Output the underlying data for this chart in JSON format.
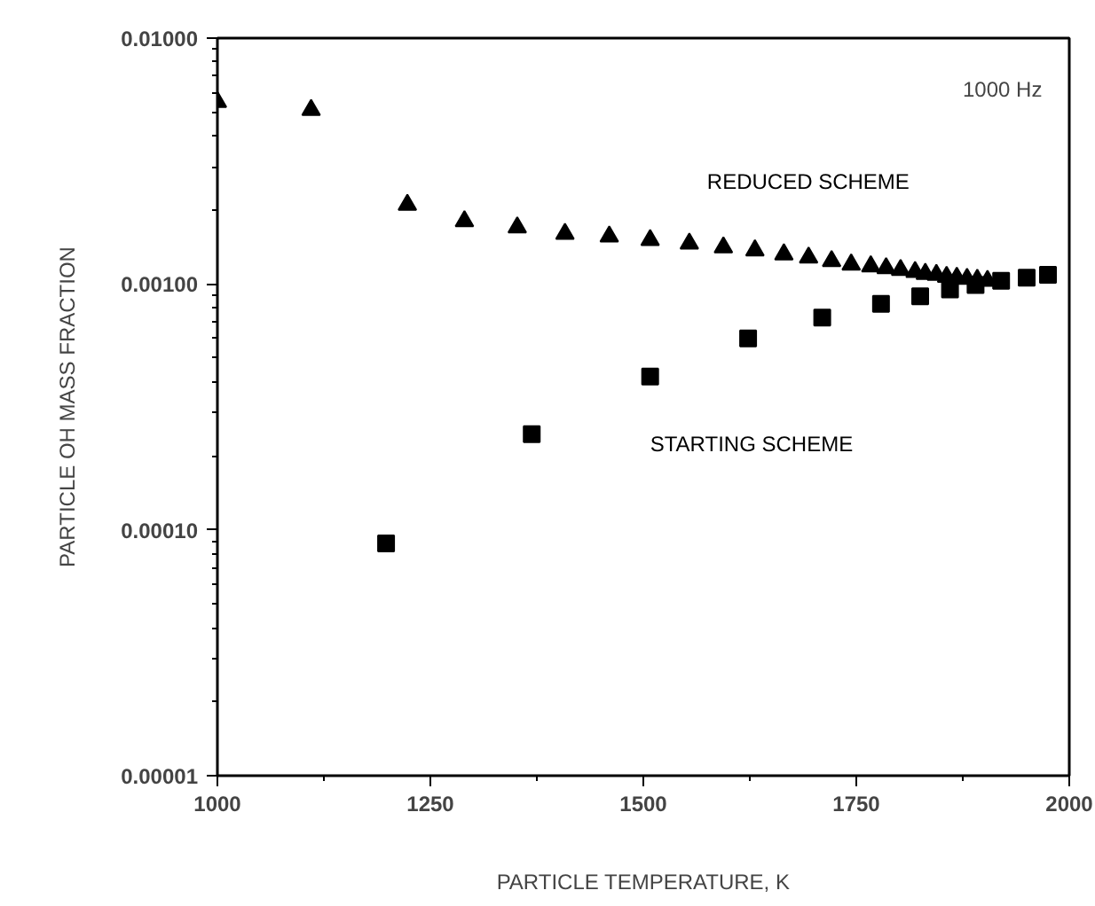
{
  "chart_data": {
    "type": "scatter",
    "xlabel": "PARTICLE TEMPERATURE, K",
    "ylabel": "PARTICLE OH MASS FRACTION",
    "log": "y",
    "xlim": [
      1000,
      2000
    ],
    "ylim": [
      1e-05,
      0.01
    ],
    "xticks": [
      1000,
      1250,
      1500,
      1750,
      2000
    ],
    "yticks": [
      {
        "value": 1e-05,
        "label": "0.00001"
      },
      {
        "value": 0.0001,
        "label": "0.00010"
      },
      {
        "value": 0.001,
        "label": "0.00100"
      },
      {
        "value": 0.01,
        "label": "0.01000"
      }
    ],
    "grid": false,
    "annotations": [
      "1000 Hz"
    ],
    "series": [
      {
        "name": "REDUCED SCHEME",
        "color": "#000000",
        "marker": "triangle",
        "x": [
          1000,
          1110,
          1223,
          1290,
          1352,
          1408,
          1460,
          1508,
          1554,
          1594,
          1631,
          1665,
          1694,
          1721,
          1744,
          1767,
          1785,
          1802,
          1819,
          1831,
          1844,
          1856,
          1868,
          1880,
          1892,
          1904
        ],
        "values": [
          0.0055,
          0.0051,
          0.0021,
          0.0018,
          0.0017,
          0.0016,
          0.00156,
          0.00151,
          0.00146,
          0.00141,
          0.00137,
          0.00132,
          0.00128,
          0.00124,
          0.0012,
          0.00118,
          0.00116,
          0.00114,
          0.00112,
          0.0011,
          0.00109,
          0.00107,
          0.00106,
          0.00105,
          0.00104,
          0.00103
        ]
      },
      {
        "name": "STARTING SCHEME",
        "color": "#000000",
        "marker": "square",
        "x": [
          1198,
          1369,
          1508,
          1623,
          1710,
          1779,
          1825,
          1860,
          1890,
          1920,
          1950,
          1975
        ],
        "values": [
          8.8e-05,
          0.000245,
          0.00042,
          0.0006,
          0.00073,
          0.00083,
          0.00089,
          0.00095,
          0.00099,
          0.00103,
          0.00106,
          0.00109
        ]
      }
    ]
  }
}
